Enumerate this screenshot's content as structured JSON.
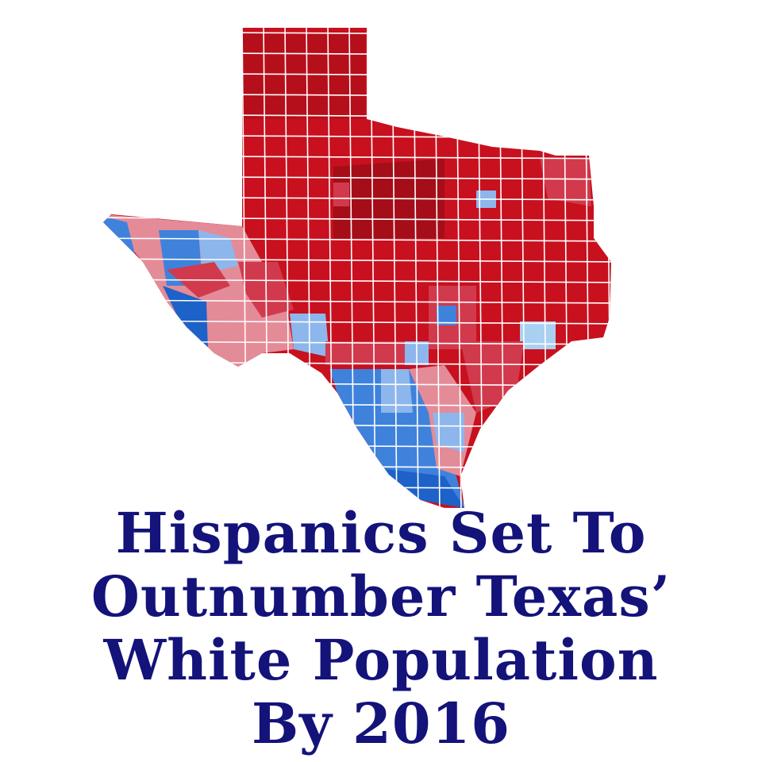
{
  "title": {
    "lines": [
      "Hispanics Set To",
      "Outnumber Texas’",
      "White Population",
      "By 2016"
    ]
  },
  "map": {
    "region": "Texas counties",
    "colors": {
      "strong_red": "#c8101e",
      "dark_red": "#a50d18",
      "light_red": "#d13a4c",
      "pink": "#e48b98",
      "light_blue": "#8db6ec",
      "blue": "#3f82dc",
      "dark_blue": "#1c62c8",
      "title_text": "#14137a",
      "county_border": "#ffffff"
    }
  }
}
